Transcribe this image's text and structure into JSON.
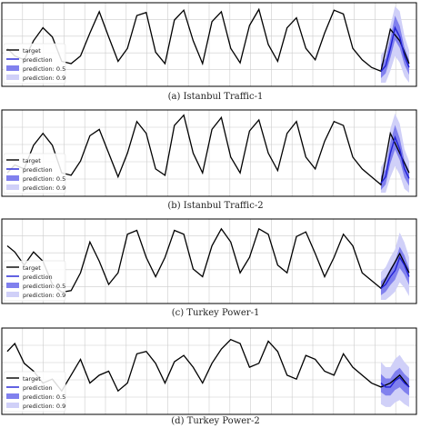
{
  "legend": {
    "target": "target",
    "prediction": "prediction",
    "p50": "prediction: 0.5",
    "p90": "prediction: 0.9"
  },
  "colors": {
    "target": "#000000",
    "prediction": "#1f1fd6",
    "band50": "#8080ee",
    "band90": "#d0d0f8",
    "grid": "#cccccc",
    "frame": "#000000"
  },
  "chart_data": [
    {
      "type": "line",
      "caption": "(a) Istanbul Traffic-1",
      "x_range": [
        0,
        430
      ],
      "y_range": [
        0,
        1
      ],
      "grid": true,
      "legend_position": "bottom-left",
      "series": [
        {
          "name": "target",
          "x": [
            0,
            8,
            18,
            28,
            38,
            48,
            58,
            68,
            78,
            88,
            98,
            108,
            118,
            128,
            138,
            148,
            158,
            168,
            178,
            188,
            198,
            208,
            218,
            228,
            238,
            248,
            258,
            268,
            278,
            288,
            298,
            308,
            318,
            328,
            338,
            348,
            358,
            368,
            378,
            388,
            398,
            408,
            418,
            428
          ],
          "y": [
            0.45,
            0.35,
            0.3,
            0.55,
            0.72,
            0.6,
            0.28,
            0.25,
            0.35,
            0.65,
            0.93,
            0.6,
            0.28,
            0.45,
            0.88,
            0.92,
            0.4,
            0.25,
            0.82,
            0.95,
            0.55,
            0.25,
            0.8,
            0.93,
            0.45,
            0.26,
            0.75,
            0.96,
            0.5,
            0.28,
            0.72,
            0.85,
            0.45,
            0.3,
            0.65,
            0.95,
            0.9,
            0.45,
            0.3,
            0.2,
            0.15,
            0.7,
            0.55,
            0.25
          ]
        },
        {
          "name": "prediction",
          "x": [
            398,
            403,
            408,
            413,
            418,
            423,
            428
          ],
          "y": [
            0.15,
            0.22,
            0.45,
            0.72,
            0.6,
            0.35,
            0.2
          ]
        }
      ],
      "bands": {
        "forecast_start_x": 396
      }
    },
    {
      "type": "line",
      "caption": "(b) Istanbul Traffic-2",
      "x_range": [
        0,
        430
      ],
      "y_range": [
        0,
        1
      ],
      "grid": true,
      "legend_position": "bottom-left",
      "series": [
        {
          "name": "target",
          "x": [
            0,
            8,
            18,
            28,
            38,
            48,
            58,
            68,
            78,
            88,
            98,
            108,
            118,
            128,
            138,
            148,
            158,
            168,
            178,
            188,
            198,
            208,
            218,
            228,
            238,
            248,
            258,
            268,
            278,
            288,
            298,
            308,
            318,
            328,
            338,
            348,
            358,
            368,
            378,
            388,
            398,
            408,
            418,
            428
          ],
          "y": [
            0.25,
            0.35,
            0.3,
            0.6,
            0.75,
            0.6,
            0.25,
            0.22,
            0.4,
            0.72,
            0.8,
            0.5,
            0.2,
            0.5,
            0.9,
            0.75,
            0.3,
            0.22,
            0.85,
            0.98,
            0.5,
            0.25,
            0.8,
            0.95,
            0.45,
            0.25,
            0.78,
            0.92,
            0.5,
            0.28,
            0.75,
            0.9,
            0.45,
            0.3,
            0.65,
            0.9,
            0.85,
            0.45,
            0.3,
            0.2,
            0.1,
            0.75,
            0.5,
            0.25
          ]
        },
        {
          "name": "prediction",
          "x": [
            398,
            403,
            408,
            413,
            418,
            423,
            428
          ],
          "y": [
            0.12,
            0.2,
            0.5,
            0.7,
            0.55,
            0.3,
            0.18
          ]
        }
      ],
      "bands": {
        "forecast_start_x": 396
      }
    },
    {
      "type": "line",
      "caption": "(c) Turkey Power-1",
      "x_range": [
        0,
        430
      ],
      "y_range": [
        0,
        1
      ],
      "grid": true,
      "legend_position": "bottom-left",
      "series": [
        {
          "name": "target",
          "x": [
            0,
            8,
            18,
            28,
            38,
            48,
            58,
            68,
            78,
            88,
            98,
            108,
            118,
            128,
            138,
            148,
            158,
            168,
            178,
            188,
            198,
            208,
            218,
            228,
            238,
            248,
            258,
            268,
            278,
            288,
            298,
            308,
            318,
            328,
            338,
            348,
            358,
            368,
            378,
            388,
            398,
            408,
            418,
            428
          ],
          "y": [
            0.7,
            0.62,
            0.45,
            0.62,
            0.5,
            0.2,
            0.1,
            0.12,
            0.35,
            0.75,
            0.5,
            0.2,
            0.35,
            0.85,
            0.9,
            0.55,
            0.3,
            0.55,
            0.9,
            0.85,
            0.4,
            0.3,
            0.7,
            0.92,
            0.75,
            0.35,
            0.55,
            0.92,
            0.85,
            0.45,
            0.35,
            0.82,
            0.88,
            0.6,
            0.3,
            0.55,
            0.85,
            0.7,
            0.35,
            0.25,
            0.15,
            0.38,
            0.6,
            0.35
          ]
        },
        {
          "name": "prediction",
          "x": [
            398,
            403,
            408,
            413,
            418,
            423,
            428
          ],
          "y": [
            0.15,
            0.2,
            0.3,
            0.38,
            0.55,
            0.45,
            0.3
          ]
        }
      ],
      "bands": {
        "forecast_start_x": 396
      }
    },
    {
      "type": "line",
      "caption": "(d) Turkey Power-2",
      "x_range": [
        0,
        430
      ],
      "y_range": [
        0,
        1
      ],
      "grid": true,
      "legend_position": "bottom-left",
      "series": [
        {
          "name": "target",
          "x": [
            0,
            8,
            18,
            28,
            38,
            48,
            58,
            68,
            78,
            88,
            98,
            108,
            118,
            128,
            138,
            148,
            158,
            168,
            178,
            188,
            198,
            208,
            218,
            228,
            238,
            248,
            258,
            268,
            278,
            288,
            298,
            308,
            318,
            328,
            338,
            348,
            358,
            368,
            378,
            388,
            398,
            408,
            418,
            428
          ],
          "y": [
            0.75,
            0.85,
            0.6,
            0.5,
            0.35,
            0.4,
            0.25,
            0.45,
            0.65,
            0.35,
            0.45,
            0.5,
            0.25,
            0.35,
            0.72,
            0.75,
            0.6,
            0.35,
            0.62,
            0.7,
            0.55,
            0.35,
            0.6,
            0.78,
            0.9,
            0.85,
            0.55,
            0.6,
            0.88,
            0.75,
            0.45,
            0.4,
            0.7,
            0.65,
            0.5,
            0.45,
            0.72,
            0.55,
            0.45,
            0.35,
            0.3,
            0.35,
            0.45,
            0.3
          ]
        },
        {
          "name": "prediction",
          "x": [
            398,
            403,
            408,
            413,
            418,
            423,
            428
          ],
          "y": [
            0.35,
            0.3,
            0.3,
            0.38,
            0.42,
            0.35,
            0.3
          ]
        }
      ],
      "bands": {
        "forecast_start_x": 396
      }
    }
  ]
}
